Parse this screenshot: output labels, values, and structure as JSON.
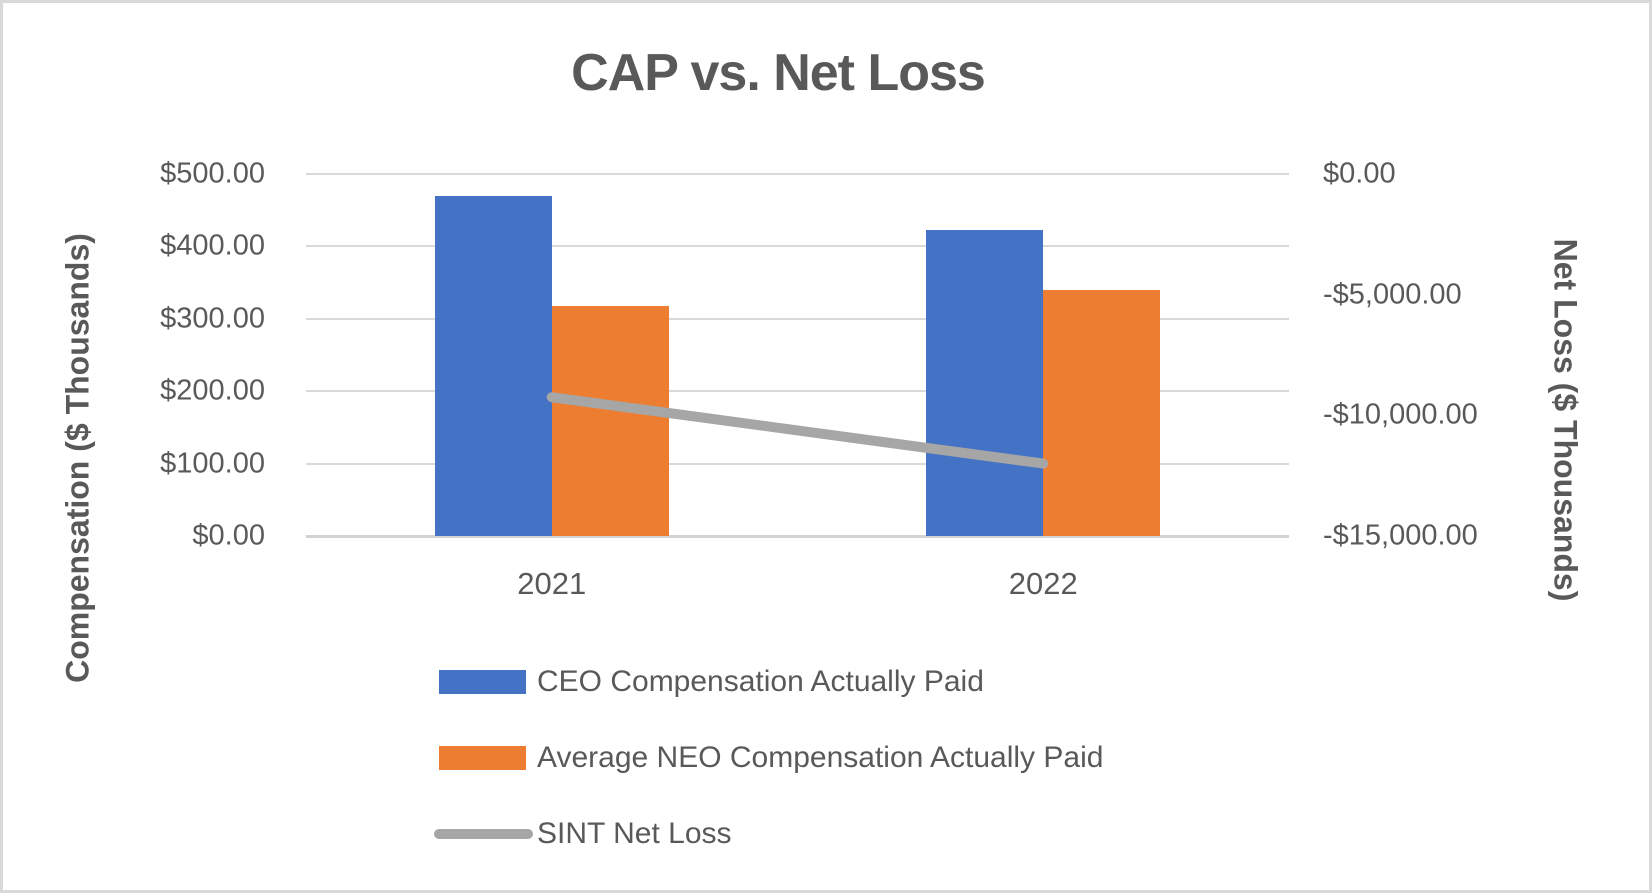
{
  "chart_data": {
    "type": "bar",
    "subtype": "combo-bar-line-dual-axis",
    "title": "CAP vs. Net Loss",
    "categories": [
      "2021",
      "2022"
    ],
    "series": [
      {
        "name": "CEO Compensation Actually Paid",
        "type": "bar",
        "axis": "left",
        "color": "#4472C4",
        "values": [
          470,
          423
        ]
      },
      {
        "name": "Average NEO Compensation Actually Paid",
        "type": "bar",
        "axis": "left",
        "color": "#ED7D31",
        "values": [
          318,
          340
        ]
      },
      {
        "name": "SINT Net Loss",
        "type": "line",
        "axis": "right",
        "color": "#A6A6A6",
        "values": [
          -9250,
          -12000
        ]
      }
    ],
    "left_axis": {
      "title": "Compensation ($ Thousands)",
      "min": 0,
      "max": 500,
      "tick_labels": [
        "$500.00",
        "$400.00",
        "$300.00",
        "$200.00",
        "$100.00",
        "$0.00"
      ]
    },
    "right_axis": {
      "title": "Net Loss ($ Thousands)",
      "min": -15000,
      "max": 0,
      "tick_labels": [
        "$0.00",
        "-$5,000.00",
        "-$10,000.00",
        "-$15,000.00"
      ]
    },
    "legend": {
      "position": "bottom-left-column",
      "items": [
        {
          "label": "CEO Compensation Actually Paid",
          "swatch": "bar",
          "color": "#4472C4"
        },
        {
          "label": "Average NEO Compensation Actually Paid",
          "swatch": "bar",
          "color": "#ED7D31"
        },
        {
          "label": "SINT Net Loss",
          "swatch": "line",
          "color": "#A6A6A6"
        }
      ]
    },
    "grid": "horizontal",
    "gridline_color": "#D9D9D9",
    "text_color": "#595959"
  }
}
